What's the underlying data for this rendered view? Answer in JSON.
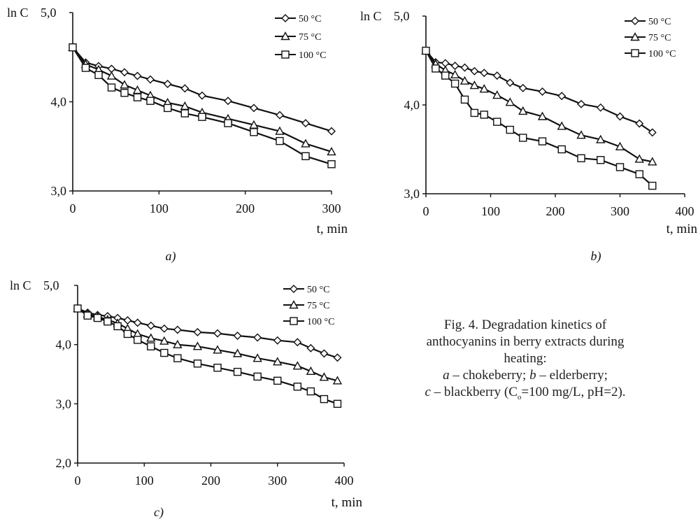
{
  "chart_data": [
    {
      "type": "line",
      "panel": "a)",
      "ylabel": "ln C",
      "xlabel": "t, min",
      "xlim": [
        0,
        300
      ],
      "ylim": [
        3.0,
        5.0
      ],
      "xticks": [
        "0",
        "100",
        "200",
        "300"
      ],
      "yticks": [
        "3,0",
        "4,0",
        "5,0"
      ],
      "grid": false,
      "legend_position": "top-right",
      "series": [
        {
          "name": "50 °C",
          "marker": "diamond",
          "x": [
            0,
            15,
            30,
            45,
            60,
            75,
            90,
            110,
            130,
            150,
            180,
            210,
            240,
            270,
            300
          ],
          "y": [
            4.61,
            4.44,
            4.4,
            4.37,
            4.33,
            4.29,
            4.25,
            4.2,
            4.15,
            4.07,
            4.01,
            3.93,
            3.85,
            3.76,
            3.67
          ]
        },
        {
          "name": "75 °C",
          "marker": "triangle",
          "x": [
            0,
            15,
            30,
            45,
            60,
            75,
            90,
            110,
            130,
            150,
            180,
            210,
            240,
            270,
            300
          ],
          "y": [
            4.61,
            4.42,
            4.36,
            4.29,
            4.19,
            4.13,
            4.07,
            3.99,
            3.95,
            3.88,
            3.81,
            3.74,
            3.67,
            3.53,
            3.44
          ]
        },
        {
          "name": "100 °C",
          "marker": "square",
          "x": [
            0,
            15,
            30,
            45,
            60,
            75,
            90,
            110,
            130,
            150,
            180,
            210,
            240,
            270,
            300
          ],
          "y": [
            4.61,
            4.38,
            4.3,
            4.16,
            4.1,
            4.05,
            4.01,
            3.93,
            3.87,
            3.83,
            3.76,
            3.66,
            3.56,
            3.39,
            3.3
          ]
        }
      ]
    },
    {
      "type": "line",
      "panel": "b)",
      "ylabel": "ln C",
      "xlabel": "t, min",
      "xlim": [
        0,
        400
      ],
      "ylim": [
        3.0,
        5.0
      ],
      "xticks": [
        "0",
        "100",
        "200",
        "300",
        "400"
      ],
      "yticks": [
        "3,0",
        "4,0",
        "5,0"
      ],
      "grid": false,
      "legend_position": "top-right",
      "series": [
        {
          "name": "50 °C",
          "marker": "diamond",
          "x": [
            0,
            15,
            30,
            45,
            60,
            75,
            90,
            110,
            130,
            150,
            180,
            210,
            240,
            270,
            300,
            330,
            350
          ],
          "y": [
            4.61,
            4.48,
            4.47,
            4.44,
            4.42,
            4.38,
            4.36,
            4.33,
            4.25,
            4.19,
            4.15,
            4.1,
            4.01,
            3.97,
            3.87,
            3.79,
            3.69
          ]
        },
        {
          "name": "75 °C",
          "marker": "triangle",
          "x": [
            0,
            15,
            30,
            45,
            60,
            75,
            90,
            110,
            130,
            150,
            180,
            210,
            240,
            270,
            300,
            330,
            350
          ],
          "y": [
            4.61,
            4.46,
            4.39,
            4.34,
            4.27,
            4.22,
            4.18,
            4.11,
            4.03,
            3.93,
            3.87,
            3.76,
            3.66,
            3.61,
            3.53,
            3.39,
            3.36
          ]
        },
        {
          "name": "100 °C",
          "marker": "square",
          "x": [
            0,
            15,
            30,
            45,
            60,
            75,
            90,
            110,
            130,
            150,
            180,
            210,
            240,
            270,
            300,
            330,
            350
          ],
          "y": [
            4.61,
            4.41,
            4.33,
            4.24,
            4.06,
            3.91,
            3.89,
            3.81,
            3.72,
            3.63,
            3.59,
            3.5,
            3.4,
            3.38,
            3.3,
            3.22,
            3.09
          ]
        }
      ]
    },
    {
      "type": "line",
      "panel": "c)",
      "ylabel": "ln C",
      "xlabel": "t, min",
      "xlim": [
        0,
        400
      ],
      "ylim": [
        2.0,
        5.0
      ],
      "xticks": [
        "0",
        "100",
        "200",
        "300",
        "400"
      ],
      "yticks": [
        "2,0",
        "3,0",
        "4,0",
        "5,0"
      ],
      "grid": false,
      "legend_position": "top-right",
      "series": [
        {
          "name": "50 °C",
          "marker": "diamond",
          "x": [
            0,
            15,
            30,
            45,
            60,
            75,
            90,
            110,
            130,
            150,
            180,
            210,
            240,
            270,
            300,
            330,
            350,
            370,
            390
          ],
          "y": [
            4.61,
            4.54,
            4.5,
            4.48,
            4.45,
            4.41,
            4.37,
            4.32,
            4.27,
            4.25,
            4.21,
            4.19,
            4.15,
            4.12,
            4.07,
            4.04,
            3.94,
            3.85,
            3.78
          ]
        },
        {
          "name": "75 °C",
          "marker": "triangle",
          "x": [
            0,
            15,
            30,
            45,
            60,
            75,
            90,
            110,
            130,
            150,
            180,
            210,
            240,
            270,
            300,
            330,
            350,
            370,
            390
          ],
          "y": [
            4.61,
            4.52,
            4.47,
            4.42,
            4.36,
            4.27,
            4.18,
            4.11,
            4.06,
            4.0,
            3.97,
            3.91,
            3.85,
            3.77,
            3.71,
            3.64,
            3.55,
            3.45,
            3.39
          ]
        },
        {
          "name": "100 °C",
          "marker": "square",
          "x": [
            0,
            15,
            30,
            45,
            60,
            75,
            90,
            110,
            130,
            150,
            180,
            210,
            240,
            270,
            300,
            330,
            350,
            370,
            390
          ],
          "y": [
            4.61,
            4.49,
            4.45,
            4.39,
            4.31,
            4.18,
            4.08,
            3.97,
            3.86,
            3.77,
            3.68,
            3.61,
            3.54,
            3.46,
            3.39,
            3.29,
            3.21,
            3.08,
            3.0
          ]
        }
      ]
    }
  ],
  "caption": {
    "line1": "Fig. 4. Degradation kinetics of",
    "line2": "anthocyanins in berry extracts during",
    "line3": "heating:",
    "a_letter": "a",
    "a_text": " – chokeberry; ",
    "b_letter": "b",
    "b_text": " – elderberry;",
    "c_letter": "c",
    "c_text": " – blackberry (C",
    "c_sub": "o",
    "c_tail": "=100 mg/L, pH=2)."
  }
}
